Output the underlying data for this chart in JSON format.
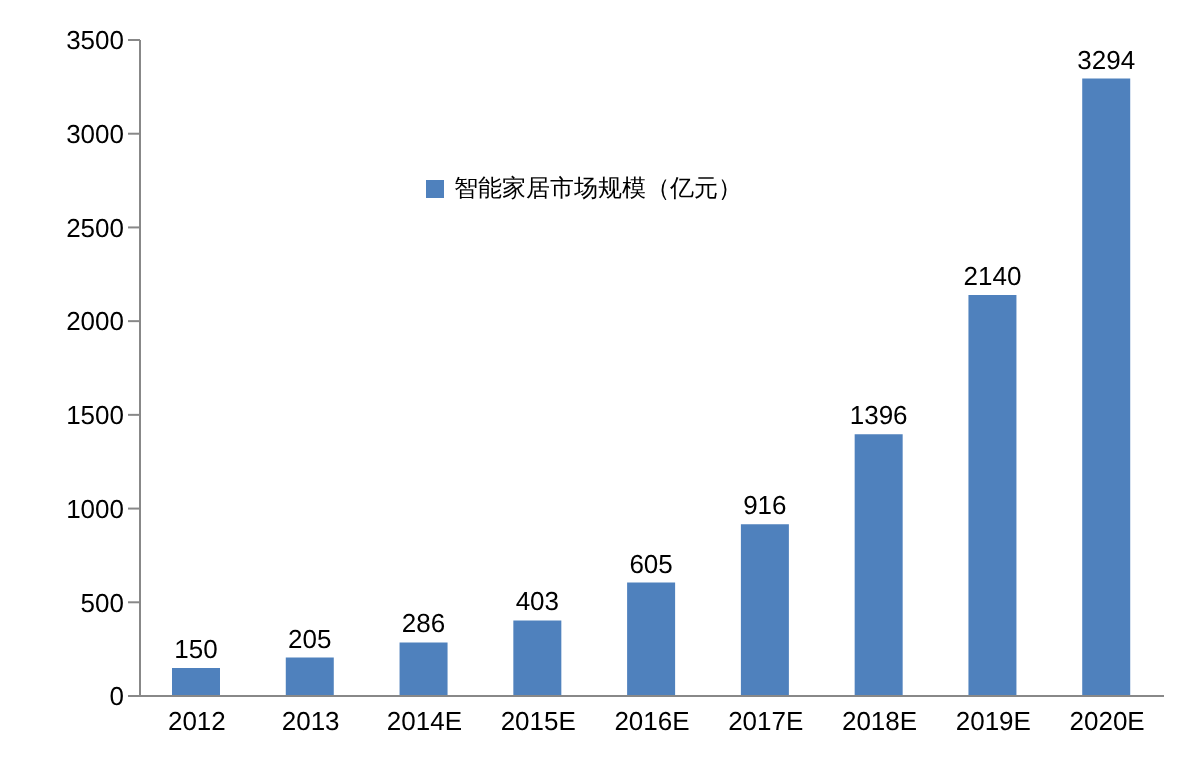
{
  "chart_data": {
    "type": "bar",
    "categories": [
      "2012",
      "2013",
      "2014E",
      "2015E",
      "2016E",
      "2017E",
      "2018E",
      "2019E",
      "2020E"
    ],
    "series": [
      {
        "name": "智能家居市场规模（亿元）",
        "color": "#4f81bd",
        "values": [
          150,
          205,
          286,
          403,
          605,
          916,
          1396,
          2140,
          3294
        ]
      }
    ],
    "ylim": [
      0,
      3500
    ],
    "yticks": [
      0,
      500,
      1000,
      1500,
      2000,
      2500,
      3000,
      3500
    ],
    "grid": false,
    "legend": "top left",
    "data_labels": true
  }
}
